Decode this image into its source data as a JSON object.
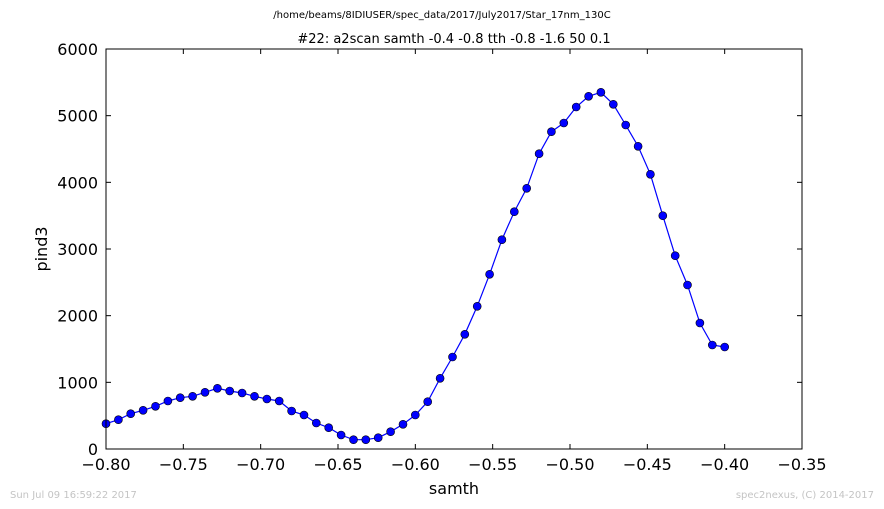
{
  "chart_data": {
    "type": "line",
    "file_path": "/home/beams/8IDIUSER/spec_data/2017/July2017/Star_17nm_130C",
    "title": "#22: a2scan  samth -0.4 -0.8  tth -0.8 -1.6  50 0.1",
    "xlabel": "samth",
    "ylabel": "pind3",
    "xlim": [
      -0.8,
      -0.35
    ],
    "ylim": [
      0,
      6000
    ],
    "xticks": [
      -0.8,
      -0.75,
      -0.7,
      -0.65,
      -0.6,
      -0.55,
      -0.5,
      -0.45,
      -0.4,
      -0.35
    ],
    "xtick_labels": [
      "−0.80",
      "−0.75",
      "−0.70",
      "−0.65",
      "−0.60",
      "−0.55",
      "−0.50",
      "−0.45",
      "−0.40",
      "−0.35"
    ],
    "yticks": [
      0,
      1000,
      2000,
      3000,
      4000,
      5000,
      6000
    ],
    "ytick_labels": [
      "0",
      "1000",
      "2000",
      "3000",
      "4000",
      "5000",
      "6000"
    ],
    "grid": false,
    "line_color": "#0000ff",
    "marker_color": "#0000ff",
    "x": [
      -0.8,
      -0.792,
      -0.784,
      -0.776,
      -0.768,
      -0.76,
      -0.752,
      -0.744,
      -0.736,
      -0.728,
      -0.72,
      -0.712,
      -0.704,
      -0.696,
      -0.688,
      -0.68,
      -0.672,
      -0.664,
      -0.656,
      -0.648,
      -0.64,
      -0.632,
      -0.624,
      -0.616,
      -0.608,
      -0.6,
      -0.592,
      -0.584,
      -0.576,
      -0.568,
      -0.56,
      -0.552,
      -0.544,
      -0.536,
      -0.528,
      -0.52,
      -0.512,
      -0.504,
      -0.496,
      -0.488,
      -0.48,
      -0.472,
      -0.464,
      -0.456,
      -0.448,
      -0.44,
      -0.432,
      -0.424,
      -0.416,
      -0.408,
      -0.4
    ],
    "y": [
      380,
      440,
      530,
      580,
      640,
      720,
      770,
      790,
      850,
      910,
      870,
      840,
      790,
      750,
      720,
      570,
      510,
      390,
      320,
      210,
      140,
      140,
      170,
      260,
      370,
      510,
      710,
      1060,
      1380,
      1720,
      2140,
      2620,
      3140,
      3560,
      3910,
      4430,
      4760,
      4890,
      5130,
      5290,
      5350,
      5170,
      4860,
      4540,
      4120,
      3500,
      2900,
      2460,
      1890,
      1560,
      1530
    ]
  },
  "footer": {
    "timestamp": "Sun Jul 09 16:59:22 2017",
    "credit": "spec2nexus, (C) 2014-2017"
  }
}
